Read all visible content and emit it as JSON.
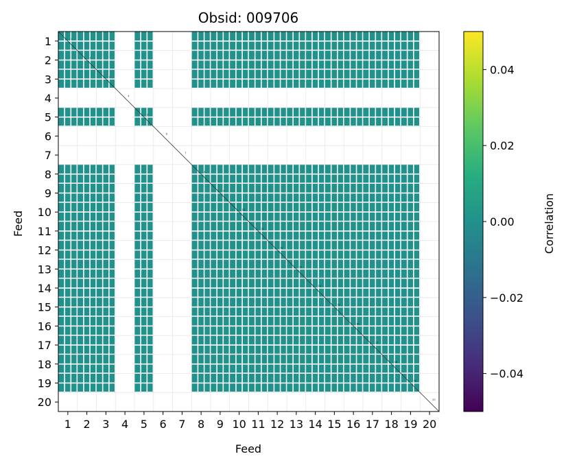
{
  "chart_data": {
    "type": "heatmap",
    "title": "Obsid: 009706",
    "xlabel": "Feed",
    "ylabel": "Feed",
    "x_ticks": [
      "1",
      "2",
      "3",
      "4",
      "5",
      "6",
      "7",
      "8",
      "9",
      "10",
      "11",
      "12",
      "13",
      "14",
      "15",
      "16",
      "17",
      "18",
      "19",
      "20"
    ],
    "y_ticks": [
      "1",
      "2",
      "3",
      "4",
      "5",
      "6",
      "7",
      "8",
      "9",
      "10",
      "11",
      "12",
      "13",
      "14",
      "15",
      "16",
      "17",
      "18",
      "19",
      "20"
    ],
    "active_feeds": [
      1,
      2,
      3,
      5,
      8,
      9,
      10,
      11,
      12,
      13,
      14,
      15,
      16,
      17,
      18,
      19
    ],
    "inactive_feeds": [
      4,
      6,
      7,
      20
    ],
    "cell_value": 0.0,
    "cell_color": "#21918c",
    "colormap": "viridis",
    "colormap_stops": [
      "#440154",
      "#472d7b",
      "#3b528b",
      "#2c728e",
      "#21918c",
      "#28ae80",
      "#5ec962",
      "#addc30",
      "#fde725"
    ],
    "colorbar": {
      "label": "Correlation",
      "vmin": -0.05,
      "vmax": 0.05,
      "ticks": [
        0.04,
        0.02,
        0.0,
        -0.02,
        -0.04
      ],
      "tick_labels": [
        "0.04",
        "0.02",
        "0.00",
        "−0.02",
        "−0.04"
      ]
    },
    "grid": true,
    "diagonal_line": true
  }
}
